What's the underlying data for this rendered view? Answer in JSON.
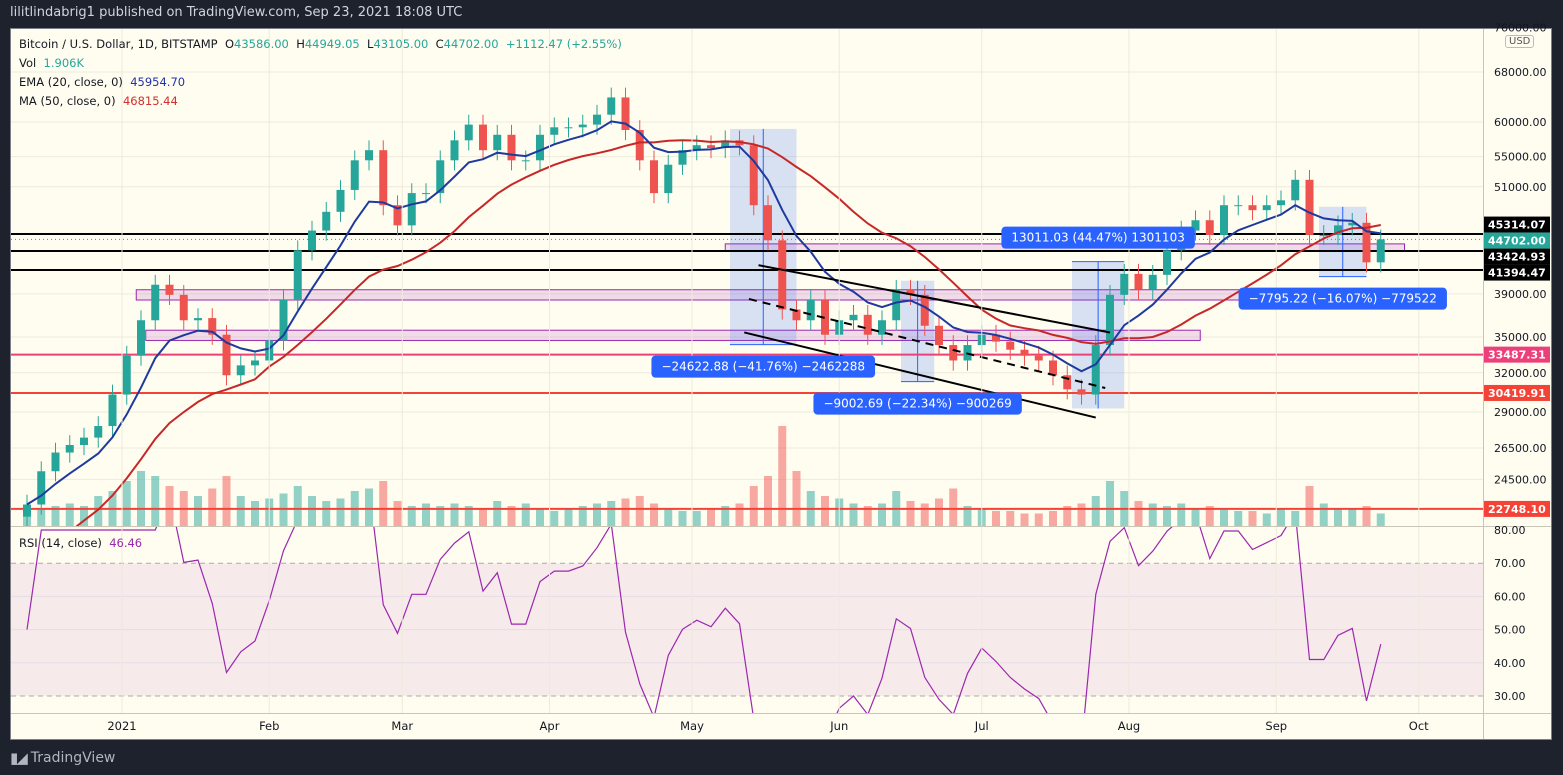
{
  "header": {
    "published": "lilitlindabrig1 published on TradingView.com, Sep 23, 2021 18:08 UTC"
  },
  "legend": {
    "symbol": "Bitcoin / U.S. Dollar, 1D, BITSTAMP",
    "open_label": "O",
    "open": "43586.00",
    "high_label": "H",
    "high": "44949.05",
    "low_label": "L",
    "low": "43105.00",
    "close_label": "C",
    "close": "44702.00",
    "change": "+1112.47 (+2.55%)",
    "vol_label": "Vol",
    "vol": "1.906K",
    "ema_label": "EMA (20, close, 0)",
    "ema": "45954.70",
    "ma_label": "MA (50, close, 0)",
    "ma": "46815.44",
    "rsi_label": "RSI (14, close)",
    "rsi": "46.46"
  },
  "currency": "USD",
  "footer": {
    "brand": "TradingView",
    "logo_mark": "17"
  },
  "colors": {
    "up": "#26a69a",
    "down": "#ef5350",
    "ema": "#1e3a9e",
    "ma": "#c62828",
    "rsi": "#9c27b0",
    "background": "#fffdf0"
  },
  "chart_data": {
    "type": "candlestick",
    "scale": "log",
    "symbol": "BTCUSD",
    "dates": [
      "2020-12-12",
      "2020-12-15",
      "2020-12-18",
      "2020-12-21",
      "2020-12-24",
      "2020-12-27",
      "2020-12-30",
      "2021-01-02",
      "2021-01-05",
      "2021-01-08",
      "2021-01-11",
      "2021-01-14",
      "2021-01-17",
      "2021-01-20",
      "2021-01-23",
      "2021-01-26",
      "2021-01-29",
      "2021-02-01",
      "2021-02-04",
      "2021-02-07",
      "2021-02-10",
      "2021-02-13",
      "2021-02-16",
      "2021-02-19",
      "2021-02-22",
      "2021-02-25",
      "2021-02-28",
      "2021-03-03",
      "2021-03-06",
      "2021-03-09",
      "2021-03-12",
      "2021-03-15",
      "2021-03-18",
      "2021-03-21",
      "2021-03-24",
      "2021-03-27",
      "2021-03-30",
      "2021-04-02",
      "2021-04-05",
      "2021-04-08",
      "2021-04-11",
      "2021-04-14",
      "2021-04-17",
      "2021-04-20",
      "2021-04-23",
      "2021-04-26",
      "2021-04-29",
      "2021-05-02",
      "2021-05-05",
      "2021-05-08",
      "2021-05-11",
      "2021-05-14",
      "2021-05-17",
      "2021-05-20",
      "2021-05-23",
      "2021-05-26",
      "2021-05-29",
      "2021-06-01",
      "2021-06-04",
      "2021-06-07",
      "2021-06-10",
      "2021-06-13",
      "2021-06-16",
      "2021-06-19",
      "2021-06-22",
      "2021-06-25",
      "2021-06-28",
      "2021-07-01",
      "2021-07-04",
      "2021-07-07",
      "2021-07-10",
      "2021-07-13",
      "2021-07-16",
      "2021-07-19",
      "2021-07-22",
      "2021-07-25",
      "2021-07-28",
      "2021-07-31",
      "2021-08-03",
      "2021-08-06",
      "2021-08-09",
      "2021-08-12",
      "2021-08-15",
      "2021-08-18",
      "2021-08-21",
      "2021-08-24",
      "2021-08-27",
      "2021-08-30",
      "2021-09-02",
      "2021-09-05",
      "2021-09-08",
      "2021-09-11",
      "2021-09-14",
      "2021-09-17",
      "2021-09-20",
      "2021-09-23"
    ],
    "close": [
      23000,
      25000,
      26200,
      26700,
      27200,
      28000,
      30300,
      33400,
      36500,
      39900,
      38900,
      36500,
      36700,
      35200,
      31800,
      32600,
      33000,
      34700,
      38400,
      43500,
      45700,
      47900,
      50600,
      54500,
      55900,
      48700,
      46300,
      50200,
      50200,
      54500,
      57300,
      59600,
      55900,
      58100,
      54500,
      54500,
      58100,
      59200,
      59200,
      59600,
      61100,
      63800,
      58800,
      54500,
      50200,
      53900,
      55900,
      56600,
      56200,
      57300,
      56600,
      48700,
      44600,
      37500,
      36500,
      38400,
      35200,
      36500,
      37000,
      35200,
      36500,
      39400,
      38900,
      36000,
      34300,
      33000,
      34300,
      35200,
      34600,
      33900,
      33400,
      33000,
      31800,
      30700,
      30300,
      34300,
      38900,
      41000,
      39400,
      40900,
      43500,
      45700,
      46900,
      45200,
      48700,
      48700,
      48100,
      48700,
      49300,
      51900,
      45200,
      45200,
      46300,
      46600,
      42200,
      44702
    ],
    "volume": [
      6,
      7,
      8,
      9,
      8,
      12,
      14,
      18,
      22,
      20,
      16,
      14,
      12,
      15,
      20,
      12,
      10,
      11,
      13,
      16,
      12,
      10,
      11,
      14,
      15,
      18,
      10,
      8,
      9,
      8,
      9,
      8,
      7,
      10,
      8,
      9,
      7,
      6,
      7,
      8,
      9,
      10,
      11,
      12,
      9,
      7,
      6,
      6,
      7,
      8,
      9,
      16,
      20,
      40,
      22,
      14,
      12,
      11,
      9,
      8,
      9,
      14,
      10,
      9,
      11,
      15,
      8,
      7,
      6,
      6,
      5,
      5,
      6,
      8,
      9,
      12,
      18,
      14,
      10,
      9,
      8,
      9,
      7,
      8,
      7,
      6,
      6,
      5,
      7,
      6,
      16,
      9,
      7,
      7,
      8,
      5
    ],
    "price_ticks": [
      "76000.00",
      "68000.00",
      "60000.00",
      "55000.00",
      "51000.00",
      "39000.00",
      "35000.00",
      "32000.00",
      "29000.00",
      "26500.00",
      "24500.00"
    ],
    "rsi_ticks": [
      "80.00",
      "70.00",
      "60.00",
      "50.00",
      "40.00",
      "30.00"
    ],
    "rsi_band": [
      30,
      70
    ],
    "time_ticks": [
      {
        "label": "2021",
        "date": "2021-01-01"
      },
      {
        "label": "Feb",
        "date": "2021-02-01"
      },
      {
        "label": "Mar",
        "date": "2021-03-01"
      },
      {
        "label": "Apr",
        "date": "2021-04-01"
      },
      {
        "label": "May",
        "date": "2021-05-01"
      },
      {
        "label": "Jun",
        "date": "2021-06-01"
      },
      {
        "label": "Jul",
        "date": "2021-07-01"
      },
      {
        "label": "Aug",
        "date": "2021-08-01"
      },
      {
        "label": "Sep",
        "date": "2021-09-01"
      },
      {
        "label": "Oct",
        "date": "2021-10-01"
      }
    ],
    "levels": [
      {
        "value": 45314.07,
        "label": "45314.07",
        "color": "#000000",
        "style": "solid"
      },
      {
        "value": 44702.0,
        "label": "44702.00",
        "color": "#26a69a",
        "style": "dotted"
      },
      {
        "value": 43424.93,
        "label": "43424.93",
        "color": "#000000",
        "style": "solid"
      },
      {
        "value": 41394.47,
        "label": "41394.47",
        "color": "#000000",
        "style": "solid"
      },
      {
        "value": 33487.31,
        "label": "33487.31",
        "color": "#ec407a",
        "style": "solid"
      },
      {
        "value": 30419.91,
        "label": "30419.91",
        "color": "#f44336",
        "style": "solid"
      },
      {
        "value": 22748.1,
        "label": "22748.10",
        "color": "#f44336",
        "style": "solid"
      }
    ],
    "zones": [
      {
        "from": "2021-05-08",
        "to": "2021-09-28",
        "low": 43400,
        "high": 44200
      },
      {
        "from": "2021-01-04",
        "to": "2021-09-28",
        "low": 38400,
        "high": 39400
      },
      {
        "from": "2021-01-06",
        "to": "2021-08-16",
        "low": 34700,
        "high": 35600
      }
    ],
    "measurements": [
      {
        "from": "2021-05-09",
        "to": "2021-05-23",
        "start": 58960,
        "end": 34337,
        "label": "−24622.88 (−41.76%) −2462288"
      },
      {
        "from": "2021-06-14",
        "to": "2021-06-21",
        "start": 40300,
        "end": 31300,
        "label": "−9002.69 (−22.34%) −900269"
      },
      {
        "from": "2021-07-20",
        "to": "2021-07-31",
        "start": 29260,
        "end": 42271,
        "label": "13011.03 (44.47%) 1301103"
      },
      {
        "from": "2021-09-10",
        "to": "2021-09-20",
        "start": 48510,
        "end": 40715,
        "label": "−7795.22 (−16.07%) −779522"
      }
    ],
    "trendlines": [
      {
        "from": [
          "2021-05-15",
          41900
        ],
        "to": [
          "2021-07-28",
          35400
        ],
        "style": "solid"
      },
      {
        "from": [
          "2021-05-13",
          38500
        ],
        "to": [
          "2021-07-27",
          30800
        ],
        "style": "dashed"
      },
      {
        "from": [
          "2021-05-12",
          35400
        ],
        "to": [
          "2021-07-25",
          28600
        ],
        "style": "solid"
      }
    ]
  }
}
